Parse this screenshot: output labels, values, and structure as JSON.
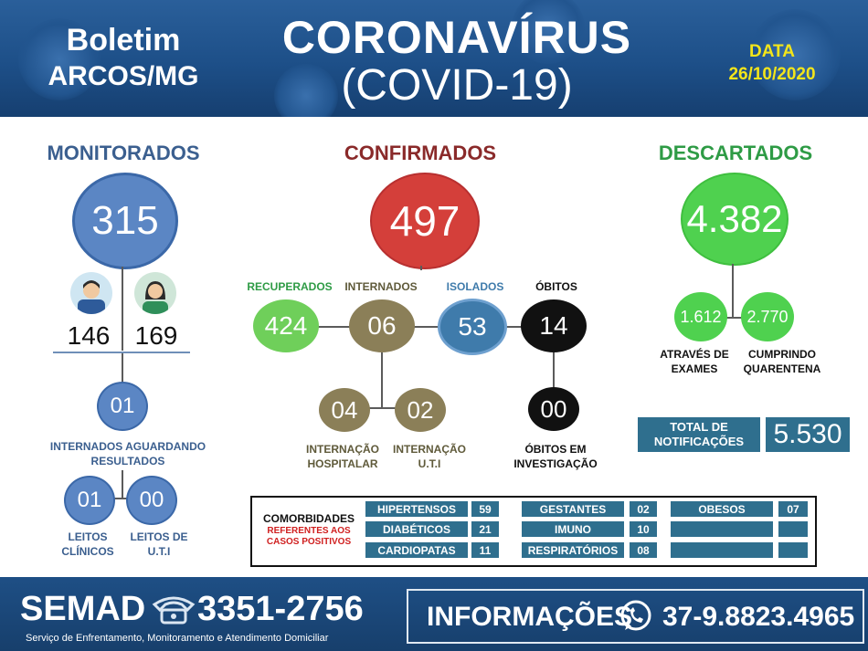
{
  "header": {
    "boletim": "Boletim",
    "city": "Arcos/MG",
    "title": "CORONAVÍRUS",
    "subtitle": "(COVID-19)",
    "date_label": "DATA",
    "date_value": "26/10/2020"
  },
  "monitorados": {
    "title": "MONITORADOS",
    "total": "315",
    "men": "146",
    "women": "169",
    "internados": "01",
    "internados_label": "INTERNADOS AGUARDANDO RESULTADOS",
    "leitos_clinicos": "01",
    "leitos_clinicos_label": "LEITOS CLÍNICOS",
    "leitos_uti": "00",
    "leitos_uti_label": "LEITOS DE U.T.I"
  },
  "confirmados": {
    "title": "CONFIRMADOS",
    "total": "497",
    "recuperados_label": "RECUPERADOS",
    "recuperados": "424",
    "internados_label": "INTERNADOS",
    "internados": "06",
    "isolados_label": "ISOLADOS",
    "isolados": "53",
    "obitos_label": "ÓBITOS",
    "obitos": "14",
    "hospitalar": "04",
    "hospitalar_label": "INTERNAÇÃO HOSPITALAR",
    "uti": "02",
    "uti_label": "INTERNAÇÃO U.T.I",
    "investigacao": "00",
    "investigacao_label": "ÓBITOS EM INVESTIGAÇÃO"
  },
  "descartados": {
    "title": "DESCARTADOS",
    "total": "4.382",
    "exames": "1.612",
    "exames_label": "ATRAVÉS DE EXAMES",
    "quarentena": "2.770",
    "quarentena_label": "CUMPRINDO QUARENTENA"
  },
  "notificacoes": {
    "label": "TOTAL DE NOTIFICAÇÕES",
    "value": "5.530"
  },
  "comorbidades": {
    "title": "COMORBIDADES",
    "subtitle": "REFERENTES AOS CASOS POSITIVOS",
    "items": [
      {
        "name": "HIPERTENSOS",
        "value": "59"
      },
      {
        "name": "DIABÉTICOS",
        "value": "21"
      },
      {
        "name": "CARDIOPATAS",
        "value": "11"
      },
      {
        "name": "GESTANTES",
        "value": "02"
      },
      {
        "name": "IMUNO",
        "value": "10"
      },
      {
        "name": "RESPIRATÓRIOS",
        "value": "08"
      },
      {
        "name": "OBESOS",
        "value": "07"
      }
    ]
  },
  "footer": {
    "semad": "SEMAD",
    "phone": "3351-2756",
    "service": "Serviço de Enfrentamento, Monitoramento e Atendimento Domiciliar",
    "info_label": "INFORMAÇÕES",
    "whatsapp": "37-9.8823.4965"
  },
  "colors": {
    "monitor_blue": "#5b86c4",
    "confirm_red": "#d43f3a",
    "discard_green": "#4fd14f",
    "olive": "#8b7f58",
    "teal_blue": "#3f7bab",
    "black": "#111111",
    "header_blue": "#1d4f88",
    "date_yellow": "#f3e51a"
  }
}
